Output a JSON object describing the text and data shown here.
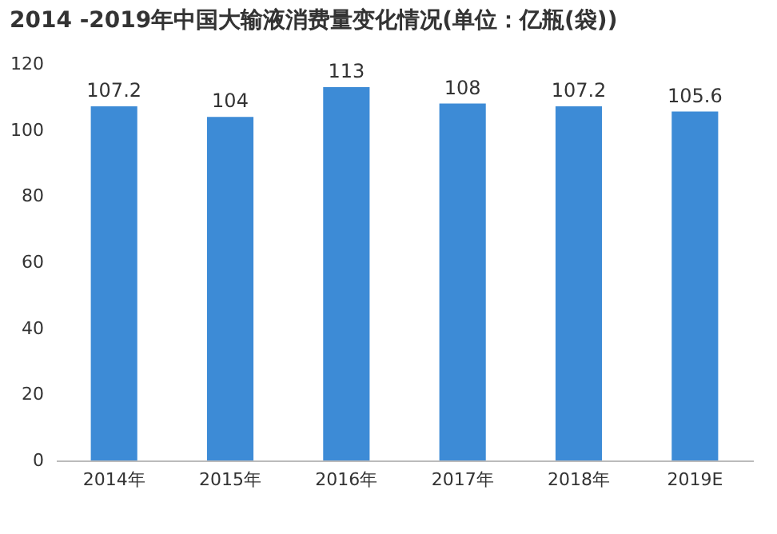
{
  "chart_data": {
    "type": "bar",
    "title": "2014 -2019年中国大输液消费量变化情况(单位：亿瓶(袋))",
    "categories": [
      "2014年",
      "2015年",
      "2016年",
      "2017年",
      "2018年",
      "2019E"
    ],
    "values": [
      107.2,
      104,
      113,
      108,
      107.2,
      105.6
    ],
    "color": "#3d8bd6",
    "ylim": [
      0,
      120
    ],
    "yticks": [
      0,
      20,
      40,
      60,
      80,
      100,
      120
    ],
    "grid": false,
    "data_labels": true
  }
}
